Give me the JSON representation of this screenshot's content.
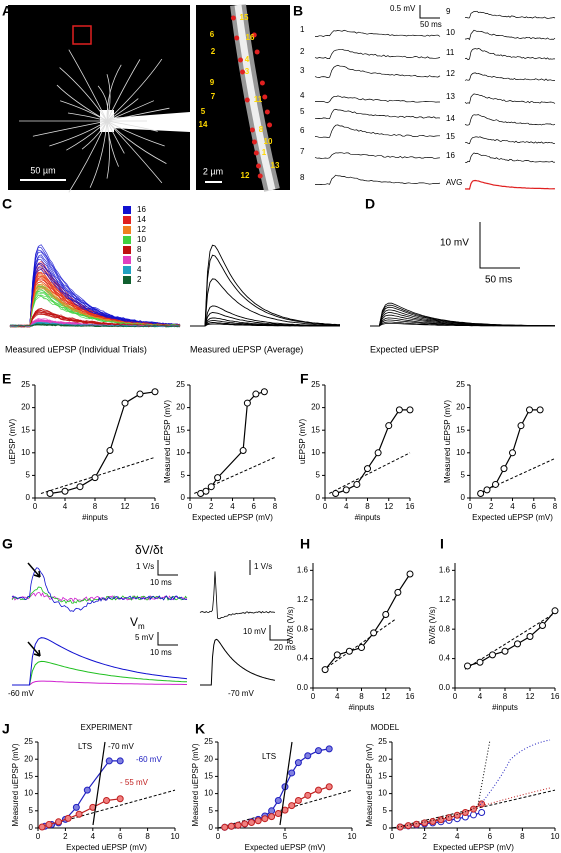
{
  "panel_labels": [
    "A",
    "B",
    "C",
    "D",
    "E",
    "F",
    "G",
    "H",
    "I",
    "J",
    "K"
  ],
  "panel_a": {
    "scale_bar": "50 µm",
    "inset_scale_bar": "2 µm",
    "input_labels": [
      "15",
      "6",
      "16",
      "2",
      "4",
      "3",
      "9",
      "7",
      "11",
      "5",
      "14",
      "8",
      "10",
      "1",
      "13",
      "12"
    ]
  },
  "panel_b": {
    "scale_y": "0.5 mV",
    "scale_x": "50 ms",
    "trace_labels": [
      "1",
      "2",
      "3",
      "4",
      "5",
      "6",
      "7",
      "8",
      "9",
      "10",
      "11",
      "12",
      "13",
      "14",
      "15",
      "16",
      "AVG"
    ]
  },
  "panel_c": {
    "legend": [
      "16",
      "14",
      "12",
      "10",
      "8",
      "6",
      "4",
      "2"
    ],
    "legend_colors": [
      "#1010d0",
      "#e02020",
      "#f08020",
      "#40d040",
      "#c01010",
      "#e040c0",
      "#20a0c0",
      "#106030"
    ],
    "captions": [
      "Measured uEPSP (Individual Trials)",
      "Measured uEPSP (Average)"
    ]
  },
  "panel_d": {
    "scale_y": "10 mV",
    "scale_x": "50 ms",
    "caption": "Expected uEPSP"
  },
  "panel_g": {
    "dvdt_label": "δV/δt",
    "dvdt_scale_y": "1 V/s",
    "dvdt_scale_x": "10 ms",
    "vm_label": "V",
    "vm_sub": "m",
    "vm_scale_y": "5 mV",
    "vm_scale_x": "10 ms",
    "vm_potential": "-60 mV",
    "inset_scale_dvdt": "1 V/s",
    "inset_scale_y": "10 mV",
    "inset_scale_x": "20 ms",
    "inset_potential": "-70 mV"
  },
  "chart_data": [
    {
      "type": "line",
      "xlabel": "#inputs",
      "ylabel": "uEPSP (mV)",
      "xlim": [
        0,
        16
      ],
      "xticks": [
        0,
        4,
        8,
        12,
        16
      ],
      "ylim": [
        0,
        25
      ],
      "yticks": [
        0,
        5,
        10,
        15,
        20,
        25
      ],
      "series": [
        {
          "color": "#000000",
          "fill": "#ffffff",
          "x": [
            2,
            4,
            6,
            8,
            10,
            12,
            14,
            16
          ],
          "values": [
            1,
            1.5,
            2.5,
            4.5,
            10.5,
            21,
            23,
            23.5
          ]
        }
      ]
    },
    {
      "type": "line",
      "xlabel": "Expected uEPSP (mV)",
      "ylabel": "Measured uEPSP (mV)",
      "xlim": [
        0,
        8
      ],
      "xticks": [
        0,
        2,
        4,
        6,
        8
      ],
      "ylim": [
        0,
        25
      ],
      "yticks": [
        0,
        5,
        10,
        15,
        20,
        25
      ],
      "series": [
        {
          "color": "#000000",
          "fill": "#ffffff",
          "x": [
            1,
            1.5,
            2,
            2.6,
            5,
            5.4,
            6.2,
            7
          ],
          "values": [
            1,
            1.5,
            2.5,
            4.5,
            10.5,
            21,
            23,
            23.5
          ]
        }
      ]
    },
    {
      "type": "line",
      "xlabel": "#inputs",
      "ylabel": "uEPSP (mV)",
      "xlim": [
        0,
        16
      ],
      "xticks": [
        0,
        4,
        8,
        12,
        16
      ],
      "ylim": [
        0,
        25
      ],
      "yticks": [
        0,
        5,
        10,
        15,
        20,
        25
      ],
      "series": [
        {
          "color": "#000000",
          "fill": "#ffffff",
          "x": [
            2,
            4,
            6,
            8,
            10,
            12,
            14,
            16
          ],
          "values": [
            1,
            1.8,
            3,
            6.5,
            10,
            16,
            19.5,
            19.5
          ]
        }
      ]
    },
    {
      "type": "line",
      "xlabel": "Expected uEPSP (mV)",
      "ylabel": "Measured uEPSP (mV)",
      "xlim": [
        0,
        8
      ],
      "xticks": [
        0,
        2,
        4,
        6,
        8
      ],
      "ylim": [
        0,
        25
      ],
      "yticks": [
        0,
        5,
        10,
        15,
        20,
        25
      ],
      "series": [
        {
          "color": "#000000",
          "fill": "#ffffff",
          "x": [
            1,
            1.6,
            2.4,
            3.2,
            4,
            4.8,
            5.6,
            6.6
          ],
          "values": [
            1,
            1.8,
            3,
            6.5,
            10,
            16,
            19.5,
            19.5
          ]
        }
      ]
    },
    {
      "type": "line",
      "xlabel": "#inputs",
      "ylabel": "δV/δt (V/s)",
      "xlim": [
        0,
        16
      ],
      "xticks": [
        0,
        4,
        8,
        12,
        16
      ],
      "ylim": [
        0,
        1.7
      ],
      "yticks": [
        {
          "value": 0,
          "label": "0.0"
        },
        0.4,
        0.8,
        1.2,
        1.6
      ],
      "series": [
        {
          "color": "#000000",
          "fill": "#ffffff",
          "x": [
            2,
            4,
            6,
            8,
            10,
            12,
            14,
            16
          ],
          "values": [
            0.25,
            0.45,
            0.5,
            0.55,
            0.75,
            1,
            1.3,
            1.55
          ]
        }
      ]
    },
    {
      "type": "line",
      "xlabel": "#inputs",
      "ylabel": "δV/δt (V/s)",
      "xlim": [
        0,
        16
      ],
      "xticks": [
        0,
        4,
        8,
        12,
        16
      ],
      "ylim": [
        0,
        1.7
      ],
      "yticks": [
        {
          "value": 0,
          "label": "0.0"
        },
        0.4,
        0.8,
        1.2,
        1.6
      ],
      "series": [
        {
          "color": "#000000",
          "fill": "#ffffff",
          "x": [
            2,
            4,
            6,
            8,
            10,
            12,
            14,
            16
          ],
          "values": [
            0.3,
            0.35,
            0.45,
            0.5,
            0.6,
            0.7,
            0.85,
            1.05
          ]
        }
      ]
    },
    {
      "type": "line",
      "title": "EXPERIMENT",
      "xlabel": "Expected uEPSP (mV)",
      "ylabel": "Measured uEPSP (mV)",
      "xlim": [
        0,
        10
      ],
      "xticks": [
        0,
        2,
        4,
        6,
        8,
        10
      ],
      "ylim": [
        0,
        25
      ],
      "yticks": [
        0,
        5,
        10,
        15,
        20,
        25
      ],
      "annotations": [
        "LTS",
        "-70 mV",
        "-60 mV",
        "- 55 mV"
      ],
      "series": [
        {
          "color": "#2020c0",
          "fill": "#8080e0",
          "x": [
            0.5,
            1,
            1.5,
            2,
            2.8,
            3.6,
            5.2,
            6
          ],
          "values": [
            0.5,
            1,
            1.5,
            2.5,
            6,
            11,
            19.5,
            19.5
          ]
        },
        {
          "color": "#c02020",
          "fill": "#f08080",
          "x": [
            0.3,
            0.8,
            1.5,
            2.2,
            3,
            4,
            5,
            6
          ],
          "values": [
            0.3,
            1,
            1.8,
            2.8,
            4,
            6,
            8,
            8.5
          ]
        }
      ]
    },
    {
      "type": "line",
      "title": "MODEL",
      "xlabel": "Expected uEPSP (mV)",
      "ylabel": "Measured uEPSP (mV)",
      "xlim": [
        0,
        10
      ],
      "xticks": [
        0,
        5,
        10
      ],
      "ylim": [
        0,
        25
      ],
      "yticks": [
        0,
        5,
        10,
        15,
        20,
        25
      ],
      "annotations": [
        "LTS"
      ],
      "series": [
        {
          "color": "#2020c0",
          "fill": "#8080e0",
          "x": [
            0.5,
            1,
            1.5,
            2,
            2.5,
            3,
            3.5,
            4,
            4.5,
            5,
            5.5,
            6,
            6.7,
            7.5,
            8.3
          ],
          "values": [
            0.2,
            0.5,
            0.8,
            1.2,
            1.8,
            2.5,
            3.5,
            5,
            8,
            12,
            16,
            19,
            21,
            22.5,
            23
          ]
        },
        {
          "color": "#c02020",
          "fill": "#f08080",
          "x": [
            0.5,
            1,
            1.5,
            2,
            2.5,
            3,
            3.5,
            4,
            4.5,
            5,
            5.5,
            6,
            6.7,
            7.5,
            8.3
          ],
          "values": [
            0.2,
            0.5,
            0.8,
            1.2,
            1.6,
            2.1,
            2.7,
            3.3,
            4.2,
            5.2,
            6.5,
            8,
            9.5,
            11,
            12
          ]
        }
      ]
    },
    {
      "type": "line",
      "xlabel": "Expected uEPSP (mV)",
      "ylabel": "Measured uEPSP (mV)",
      "xlim": [
        0,
        10
      ],
      "xticks": [
        0,
        2,
        4,
        6,
        8,
        10
      ],
      "ylim": [
        0,
        25
      ],
      "yticks": [
        0,
        5,
        10,
        15,
        20,
        25
      ],
      "series": [
        {
          "color": "#2020c0",
          "fill": "#ffffff",
          "x": [
            0.5,
            1,
            1.5,
            2,
            2.5,
            3,
            3.5,
            4,
            4.5,
            5,
            5.5
          ],
          "values": [
            0.3,
            0.6,
            0.9,
            1.2,
            1.5,
            1.8,
            2.2,
            2.7,
            3.2,
            3.8,
            4.5
          ]
        },
        {
          "color": "#c02020",
          "fill": "#f08080",
          "x": [
            0.5,
            1,
            1.5,
            2,
            2.5,
            3,
            3.5,
            4,
            4.5,
            5,
            5.5
          ],
          "values": [
            0.3,
            0.7,
            1.1,
            1.5,
            1.9,
            2.4,
            3,
            3.7,
            4.5,
            5.5,
            7
          ]
        }
      ]
    }
  ]
}
